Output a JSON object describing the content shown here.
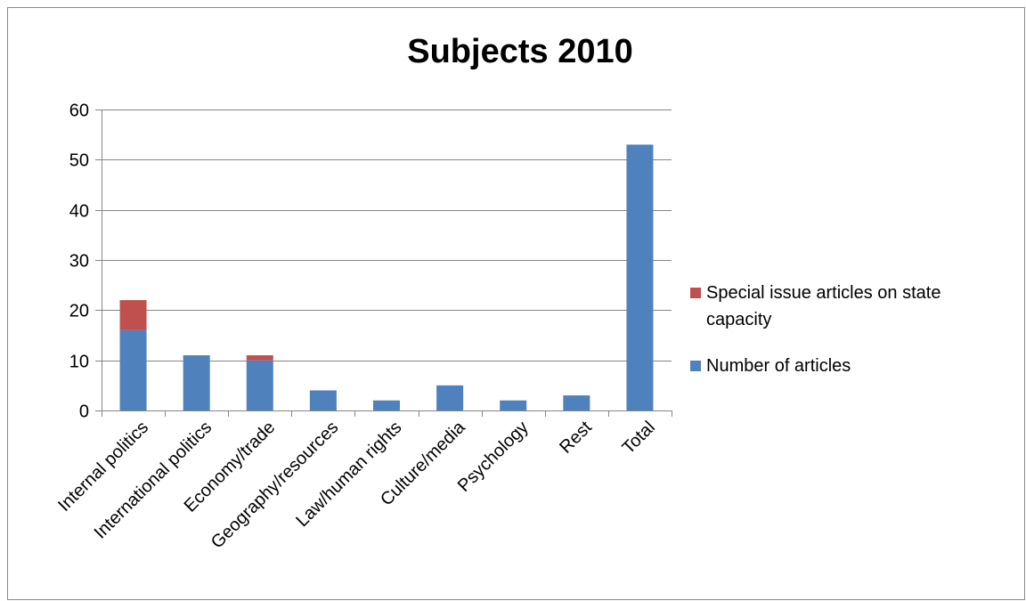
{
  "chart_data": {
    "type": "bar",
    "stacked": true,
    "title": "Subjects 2010",
    "xlabel": "",
    "ylabel": "",
    "categories": [
      "Internal politics",
      "International politics",
      "Economy/trade",
      "Geography/resources",
      "Law/human rights",
      "Culture/media",
      "Psychology",
      "Rest",
      "Total"
    ],
    "series": [
      {
        "name": "Number of articles",
        "color": "#4f81bd",
        "values": [
          16,
          11,
          10,
          4,
          2,
          5,
          2,
          3,
          53
        ]
      },
      {
        "name": "Special issue articles on state capacity",
        "color": "#c0504d",
        "values": [
          6,
          0,
          1,
          0,
          0,
          0,
          0,
          0,
          0
        ]
      }
    ],
    "ylim": [
      0,
      60
    ],
    "yticks": [
      0,
      10,
      20,
      30,
      40,
      50,
      60
    ],
    "grid": true,
    "legend": {
      "placement": "right",
      "entries": [
        {
          "lines": [
            "Special issue articles on state",
            "capacity"
          ],
          "color": "#c0504d"
        },
        {
          "lines": [
            "Number of articles"
          ],
          "color": "#4f81bd"
        }
      ]
    }
  }
}
